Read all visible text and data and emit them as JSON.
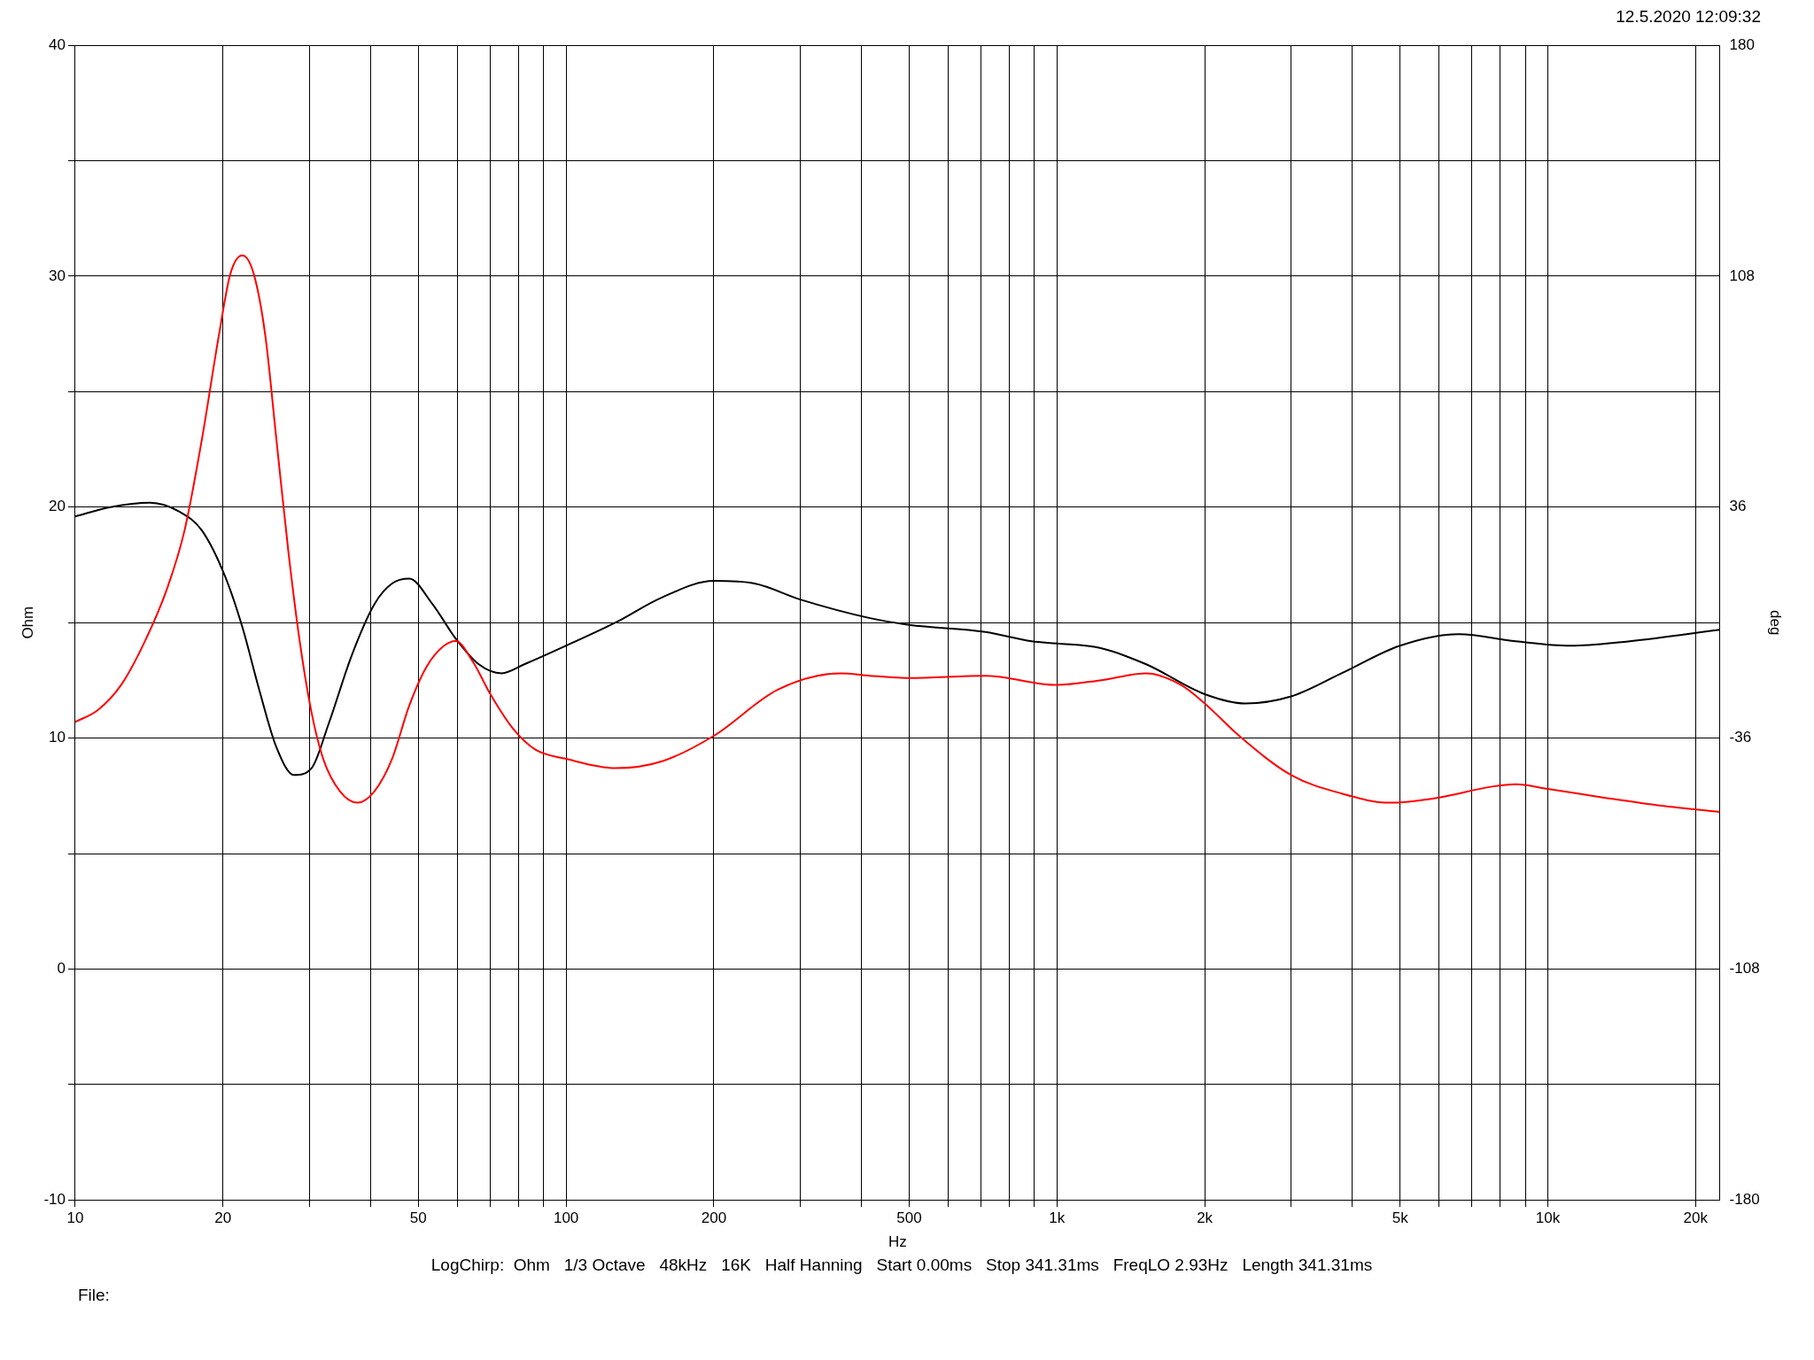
{
  "chart_data": {
    "type": "line",
    "xlabel": "Hz",
    "ylabel": "Ohm",
    "y2label": "deg",
    "log": "x",
    "grid": true,
    "legend": false,
    "marker": "none",
    "line_style": "solid",
    "xlim": [
      10,
      22400
    ],
    "xticks": [
      10,
      20,
      {
        "value": 30,
        "label": null
      },
      {
        "value": 40,
        "label": null
      },
      50,
      {
        "value": 60,
        "label": null
      },
      {
        "value": 70,
        "label": null
      },
      {
        "value": 80,
        "label": null
      },
      {
        "value": 90,
        "label": null
      },
      100,
      200,
      {
        "value": 300,
        "label": null
      },
      {
        "value": 400,
        "label": null
      },
      500,
      {
        "value": 600,
        "label": null
      },
      {
        "value": 700,
        "label": null
      },
      {
        "value": 800,
        "label": null
      },
      {
        "value": 900,
        "label": null
      },
      {
        "value": 1000,
        "label": "1k"
      },
      {
        "value": 2000,
        "label": "2k"
      },
      {
        "value": 3000,
        "label": null
      },
      {
        "value": 4000,
        "label": null
      },
      {
        "value": 5000,
        "label": "5k"
      },
      {
        "value": 6000,
        "label": null
      },
      {
        "value": 7000,
        "label": null
      },
      {
        "value": 8000,
        "label": null
      },
      {
        "value": 9000,
        "label": null
      },
      {
        "value": 10000,
        "label": "10k"
      },
      {
        "value": 20000,
        "label": "20k"
      }
    ],
    "ylim": [
      -10,
      40
    ],
    "yticks": [
      -10,
      {
        "value": -5,
        "label": null
      },
      0,
      {
        "value": 5,
        "label": null
      },
      10,
      {
        "value": 15,
        "label": null
      },
      20,
      {
        "value": 25,
        "label": null
      },
      30,
      {
        "value": 35,
        "label": null
      },
      40
    ],
    "y2lim": [
      -180,
      180
    ],
    "y2ticks": [
      -180,
      -108,
      -36,
      36,
      108,
      180
    ],
    "series": [
      {
        "color": "#ff0000",
        "x": [
          10,
          11.1,
          12.4,
          13.8,
          15.4,
          16.7,
          18.1,
          19.6,
          20.7,
          21.9,
          23.1,
          24.4,
          25.7,
          27.2,
          28.7,
          30.3,
          32,
          34.6,
          37.6,
          40.7,
          44.2,
          47.9,
          52,
          56.4,
          59.6,
          64.6,
          70.1,
          78,
          86.6,
          100,
          126,
          157,
          200,
          270,
          363,
          416,
          500,
          715,
          1000,
          1223,
          1520,
          1790,
          2000,
          2350,
          3000,
          3800,
          4750,
          5900,
          7700,
          8600,
          10000,
          13200,
          16600,
          22400
        ],
        "values": [
          10.7,
          11.2,
          12.3,
          14.1,
          16.5,
          19.0,
          22.9,
          27.4,
          30.1,
          30.9,
          30.1,
          27.4,
          22.9,
          18.0,
          14.1,
          11.1,
          9.1,
          7.7,
          7.2,
          7.7,
          9.1,
          11.4,
          13.1,
          14.0,
          14.2,
          13.3,
          11.9,
          10.4,
          9.5,
          9.1,
          8.7,
          9.0,
          10.1,
          12.1,
          12.8,
          12.7,
          12.6,
          12.7,
          12.3,
          12.5,
          12.8,
          12.3,
          11.5,
          10.1,
          8.4,
          7.6,
          7.2,
          7.4,
          7.9,
          8.0,
          7.8,
          7.4,
          7.1,
          6.8
        ]
      },
      {
        "color": "#000000",
        "axis": "y2",
        "x": [
          10,
          11.8,
          14.2,
          16.3,
          18.1,
          20.2,
          21.9,
          23.7,
          25.7,
          27.9,
          30.3,
          32.8,
          36.6,
          40.7,
          44.2,
          47.9,
          53.4,
          59.6,
          66.4,
          73.9,
          82.2,
          100,
          126,
          157,
          200,
          242,
          300,
          416,
          500,
          715,
          888,
          1000,
          1223,
          1520,
          2000,
          2420,
          3000,
          3800,
          5000,
          6580,
          8600,
          11100,
          14700,
          22400
        ],
        "values": [
          33.1,
          36,
          37.4,
          34.6,
          28.8,
          14.4,
          -1.4,
          -20.9,
          -38.9,
          -47.5,
          -45.4,
          -31.7,
          -10.1,
          5.8,
          12.2,
          13.7,
          5.8,
          -5.0,
          -13.0,
          -15.8,
          -13.0,
          -7.2,
          0,
          7.9,
          13.0,
          12.2,
          7.2,
          1.4,
          -0.7,
          -2.9,
          -5.8,
          -6.5,
          -7.9,
          -13.0,
          -22.3,
          -25.2,
          -23.0,
          -15.8,
          -7.2,
          -3.6,
          -5.8,
          -7.2,
          -5.8,
          -2.2
        ]
      }
    ],
    "annotations": [
      "12.5.2020 12:09:32",
      "LogChirp:  Ohm   1/3 Octave   48kHz   16K   Half Hanning   Start 0.00ms   Stop 341.31ms   FreqLO 2.93Hz   Length 341.31ms",
      "File:"
    ]
  }
}
